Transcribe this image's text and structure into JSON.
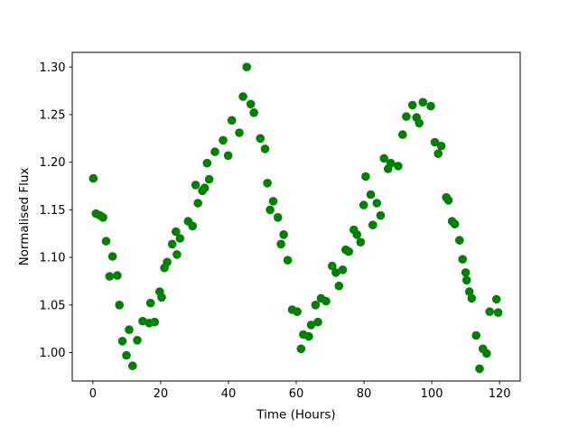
{
  "figure": {
    "background": "#ffffff",
    "spine_color": "#000000"
  },
  "chart_data": {
    "type": "scatter",
    "title": "",
    "xlabel": "Time (Hours)",
    "ylabel": "Normalised Flux",
    "legend": null,
    "grid": false,
    "marker": "circle",
    "marker_color": "#008000",
    "marker_radius": 4.8,
    "xlim": [
      -6.1,
      126.1
    ],
    "ylim": [
      0.9701,
      1.3154
    ],
    "xticks": [
      0,
      20,
      40,
      60,
      80,
      100,
      120
    ],
    "yticks": [
      1.0,
      1.05,
      1.1,
      1.15,
      1.2,
      1.25,
      1.3
    ],
    "x_tick_format": "integer",
    "y_tick_format": "2dp",
    "points": [
      [
        0.1,
        1.183
      ],
      [
        0.9,
        1.146
      ],
      [
        2.1,
        1.144
      ],
      [
        3.0,
        1.142
      ],
      [
        3.9,
        1.117
      ],
      [
        4.9,
        1.08
      ],
      [
        5.8,
        1.101
      ],
      [
        7.2,
        1.081
      ],
      [
        7.8,
        1.05
      ],
      [
        8.7,
        1.012
      ],
      [
        9.9,
        0.997
      ],
      [
        10.7,
        1.024
      ],
      [
        11.7,
        0.986
      ],
      [
        13.1,
        1.013
      ],
      [
        14.7,
        1.033
      ],
      [
        16.6,
        1.031
      ],
      [
        17.0,
        1.052
      ],
      [
        18.2,
        1.032
      ],
      [
        19.7,
        1.064
      ],
      [
        20.3,
        1.058
      ],
      [
        21.1,
        1.089
      ],
      [
        21.9,
        1.095
      ],
      [
        23.4,
        1.114
      ],
      [
        24.5,
        1.127
      ],
      [
        24.8,
        1.103
      ],
      [
        25.7,
        1.12
      ],
      [
        28.1,
        1.138
      ],
      [
        29.4,
        1.133
      ],
      [
        30.3,
        1.176
      ],
      [
        31.0,
        1.157
      ],
      [
        32.3,
        1.17
      ],
      [
        33.0,
        1.173
      ],
      [
        33.7,
        1.199
      ],
      [
        34.3,
        1.182
      ],
      [
        36.0,
        1.211
      ],
      [
        38.4,
        1.223
      ],
      [
        39.9,
        1.207
      ],
      [
        41.0,
        1.244
      ],
      [
        43.2,
        1.231
      ],
      [
        44.3,
        1.269
      ],
      [
        45.4,
        1.3
      ],
      [
        46.6,
        1.261
      ],
      [
        47.5,
        1.252
      ],
      [
        49.4,
        1.225
      ],
      [
        50.8,
        1.214
      ],
      [
        51.5,
        1.178
      ],
      [
        52.3,
        1.15
      ],
      [
        53.2,
        1.159
      ],
      [
        54.6,
        1.142
      ],
      [
        55.5,
        1.114
      ],
      [
        56.3,
        1.124
      ],
      [
        57.5,
        1.097
      ],
      [
        58.8,
        1.045
      ],
      [
        60.3,
        1.043
      ],
      [
        61.4,
        1.004
      ],
      [
        62.1,
        1.019
      ],
      [
        63.7,
        1.017
      ],
      [
        64.4,
        1.029
      ],
      [
        65.7,
        1.05
      ],
      [
        66.4,
        1.032
      ],
      [
        67.3,
        1.057
      ],
      [
        68.8,
        1.054
      ],
      [
        70.6,
        1.091
      ],
      [
        71.7,
        1.084
      ],
      [
        72.6,
        1.07
      ],
      [
        73.7,
        1.087
      ],
      [
        74.6,
        1.108
      ],
      [
        75.5,
        1.106
      ],
      [
        77.0,
        1.129
      ],
      [
        77.9,
        1.124
      ],
      [
        79.0,
        1.116
      ],
      [
        79.9,
        1.155
      ],
      [
        80.5,
        1.185
      ],
      [
        82.0,
        1.166
      ],
      [
        82.6,
        1.134
      ],
      [
        83.8,
        1.157
      ],
      [
        84.9,
        1.144
      ],
      [
        85.9,
        1.204
      ],
      [
        87.1,
        1.193
      ],
      [
        87.9,
        1.199
      ],
      [
        90.1,
        1.196
      ],
      [
        91.4,
        1.229
      ],
      [
        92.5,
        1.248
      ],
      [
        94.3,
        1.26
      ],
      [
        95.5,
        1.247
      ],
      [
        96.3,
        1.241
      ],
      [
        97.4,
        1.263
      ],
      [
        99.7,
        1.259
      ],
      [
        100.9,
        1.221
      ],
      [
        101.9,
        1.209
      ],
      [
        102.8,
        1.217
      ],
      [
        104.3,
        1.163
      ],
      [
        104.9,
        1.16
      ],
      [
        106.0,
        1.138
      ],
      [
        106.8,
        1.135
      ],
      [
        108.2,
        1.118
      ],
      [
        109.1,
        1.098
      ],
      [
        110.0,
        1.084
      ],
      [
        110.3,
        1.076
      ],
      [
        111.1,
        1.064
      ],
      [
        111.8,
        1.057
      ],
      [
        113.1,
        1.018
      ],
      [
        114.1,
        0.983
      ],
      [
        115.1,
        1.004
      ],
      [
        116.2,
        0.999
      ],
      [
        117.1,
        1.043
      ],
      [
        119.1,
        1.056
      ],
      [
        119.6,
        1.042
      ]
    ]
  }
}
